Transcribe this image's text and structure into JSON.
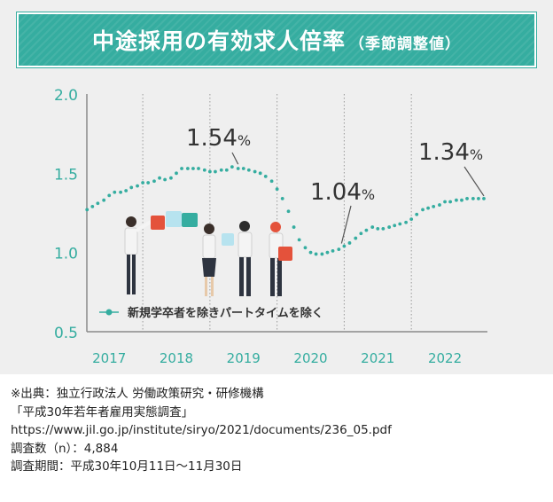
{
  "title": {
    "main": "中途採用の有効求人倍率",
    "sub": "（季節調整値）"
  },
  "chart_data": {
    "type": "line",
    "ylim": [
      0.5,
      2.0
    ],
    "y_ticks": [
      "2.0",
      "1.5",
      "1.0",
      "0.5"
    ],
    "x_ticks": [
      "2017",
      "2018",
      "2019",
      "2020",
      "2021",
      "2022"
    ],
    "grid": "vertical dotted lines at year boundaries",
    "legend_position": "bottom-left",
    "series": [
      {
        "name": "新規学卒者を除きパートタイムを除く",
        "color": "#35ada0",
        "x": [
          2016.67,
          2016.75,
          2016.83,
          2016.92,
          2017.0,
          2017.08,
          2017.17,
          2017.25,
          2017.33,
          2017.42,
          2017.5,
          2017.58,
          2017.67,
          2017.75,
          2017.83,
          2017.92,
          2018.0,
          2018.08,
          2018.17,
          2018.25,
          2018.33,
          2018.42,
          2018.5,
          2018.58,
          2018.67,
          2018.75,
          2018.83,
          2018.92,
          2019.0,
          2019.08,
          2019.17,
          2019.25,
          2019.33,
          2019.42,
          2019.5,
          2019.58,
          2019.67,
          2019.75,
          2019.83,
          2019.92,
          2020.0,
          2020.08,
          2020.17,
          2020.25,
          2020.33,
          2020.42,
          2020.5,
          2020.58,
          2020.67,
          2020.75,
          2020.83,
          2020.92,
          2021.0,
          2021.08,
          2021.17,
          2021.25,
          2021.33,
          2021.42,
          2021.5,
          2021.58,
          2021.67,
          2021.75,
          2021.83,
          2021.92,
          2022.0,
          2022.08,
          2022.17,
          2022.25,
          2022.33,
          2022.42,
          2022.5,
          2022.58
        ],
        "values": [
          1.27,
          1.29,
          1.31,
          1.33,
          1.36,
          1.38,
          1.38,
          1.39,
          1.41,
          1.42,
          1.44,
          1.44,
          1.45,
          1.47,
          1.46,
          1.47,
          1.5,
          1.53,
          1.53,
          1.53,
          1.53,
          1.52,
          1.51,
          1.51,
          1.52,
          1.52,
          1.54,
          1.53,
          1.53,
          1.52,
          1.51,
          1.5,
          1.48,
          1.45,
          1.4,
          1.34,
          1.26,
          1.16,
          1.08,
          1.03,
          1.0,
          0.99,
          0.99,
          1.0,
          1.01,
          1.02,
          1.04,
          1.06,
          1.09,
          1.12,
          1.14,
          1.16,
          1.15,
          1.15,
          1.16,
          1.17,
          1.18,
          1.19,
          1.21,
          1.24,
          1.27,
          1.28,
          1.29,
          1.3,
          1.32,
          1.32,
          1.33,
          1.33,
          1.34,
          1.34,
          1.34,
          1.34
        ]
      }
    ],
    "annotations": [
      {
        "value": "1.54",
        "unit": "%"
      },
      {
        "value": "1.04",
        "unit": "%"
      },
      {
        "value": "1.34",
        "unit": "%"
      }
    ]
  },
  "source": {
    "lines": [
      "※出典：独立行政法人 労働政策研究・研修機構",
      "「平成30年若年者雇用実態調査」",
      "https://www.jil.go.jp/institute/siryo/2021/documents/236_05.pdf",
      "調査数（n）：4,884",
      "調査期間：平成30年10月11日〜11月30日"
    ]
  },
  "illustration": {
    "subject": "business-people-holding-puzzle-pieces",
    "palette": [
      "#e4523b",
      "#7cc5dc",
      "#35ada0",
      "#b7e3ef"
    ]
  }
}
